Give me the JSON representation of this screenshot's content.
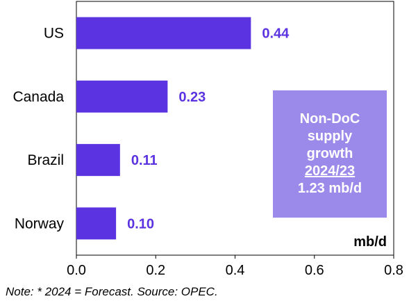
{
  "chart_data": {
    "type": "bar",
    "orientation": "horizontal",
    "categories": [
      "US",
      "Canada",
      "Brazil",
      "Norway"
    ],
    "values": [
      0.44,
      0.23,
      0.11,
      0.1
    ],
    "value_labels": [
      "0.44",
      "0.23",
      "0.11",
      "0.10"
    ],
    "xlim": [
      0,
      0.8
    ],
    "x_ticks": [
      "0.0",
      "0.2",
      "0.4",
      "0.6",
      "0.8"
    ],
    "unit_label": "mb/d",
    "grid": false,
    "bar_color": "#5b33e0",
    "label_color": "#5b33e0"
  },
  "callout": {
    "line1": "Non-DoC",
    "line2": "supply",
    "line3": "growth",
    "line4": "2024/23",
    "line5": "1.23 mb/d",
    "background": "#9b8aea"
  },
  "note": "Note: * 2024 = Forecast. Source: OPEC."
}
